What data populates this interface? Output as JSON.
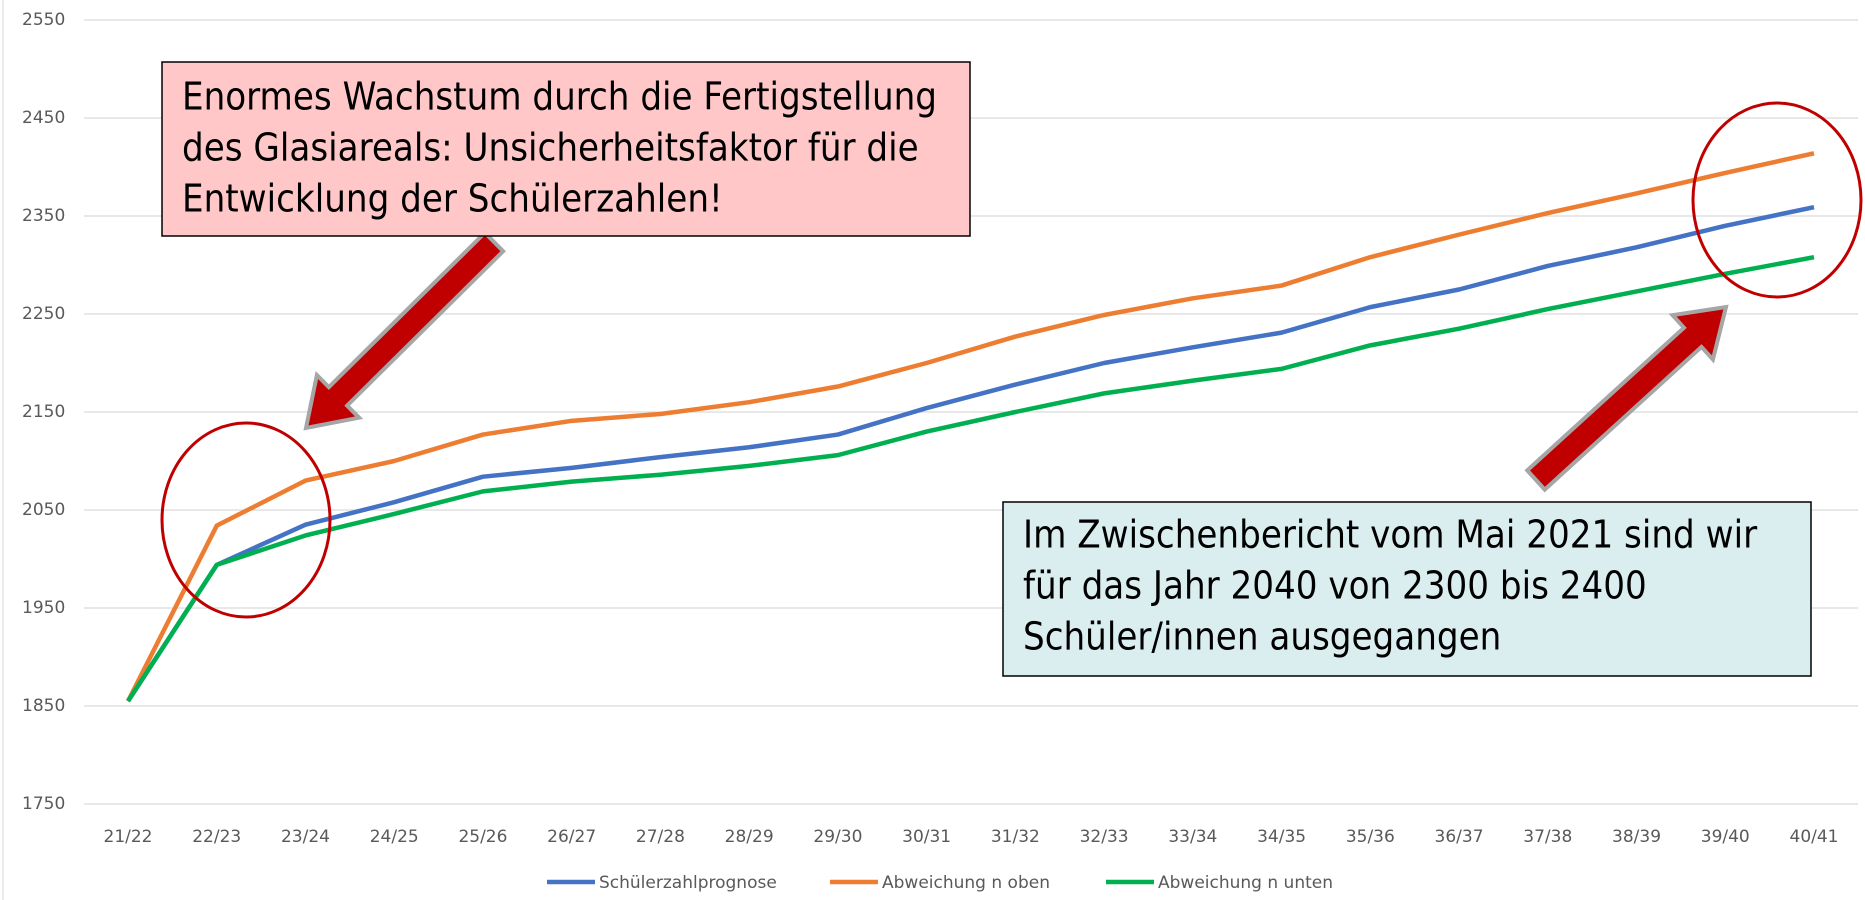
{
  "chart_data": {
    "type": "line",
    "categories": [
      "21/22",
      "22/23",
      "23/24",
      "24/25",
      "25/26",
      "26/27",
      "27/28",
      "28/29",
      "29/30",
      "30/31",
      "31/32",
      "32/33",
      "33/34",
      "34/35",
      "35/36",
      "36/37",
      "37/38",
      "38/39",
      "39/40",
      "40/41"
    ],
    "series": [
      {
        "name": "Schülerzahlprognose",
        "color": "#4472c4",
        "values": [
          1855,
          1994,
          2035,
          2058,
          2084,
          2093,
          2104,
          2114,
          2127,
          2154,
          2178,
          2200,
          2216,
          2231,
          2257,
          2275,
          2299,
          2318,
          2340,
          2359
        ]
      },
      {
        "name": "Abweichung n oben",
        "color": "#ed7d31",
        "values": [
          1855,
          2034,
          2080,
          2100,
          2127,
          2141,
          2148,
          2160,
          2176,
          2200,
          2227,
          2249,
          2266,
          2279,
          2308,
          2331,
          2353,
          2373,
          2394,
          2414
        ]
      },
      {
        "name": "Abweichung n unten",
        "color": "#00b050",
        "values": [
          1855,
          1994,
          2024,
          2046,
          2069,
          2079,
          2086,
          2095,
          2106,
          2130,
          2150,
          2169,
          2182,
          2194,
          2218,
          2235,
          2255,
          2273,
          2291,
          2308
        ]
      }
    ],
    "ylim": [
      1750,
      2550
    ],
    "yticks": [
      1750,
      1850,
      1950,
      2050,
      2150,
      2250,
      2350,
      2450,
      2550
    ],
    "grid": true,
    "legend": "bottom",
    "annotations": [
      {
        "lines": [
          "Enormes Wachstum durch die Fertigstellung",
          "des Glasiareals: Unsicherheitsfaktor für die",
          "Entwicklung der Schülerzahlen!"
        ],
        "color": "#ffc7c7"
      },
      {
        "lines": [
          "Im Zwischenbericht vom Mai 2021 sind wir",
          "für das Jahr 2040 von 2300 bis 2400",
          "Schüler/innen ausgegangen"
        ],
        "color": "#daeef0"
      }
    ]
  }
}
